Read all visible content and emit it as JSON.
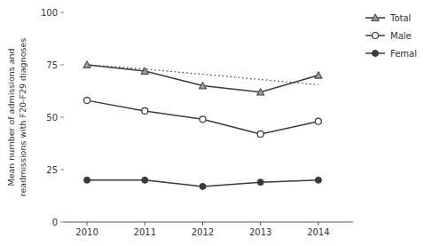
{
  "chart_data": {
    "type": "line",
    "y_label": "Mean number of admissions and\nreadmissions with F20-F29 diagnoses",
    "x": [
      2010,
      2011,
      2012,
      2013,
      2014
    ],
    "series": [
      {
        "name": "Total",
        "color": "#3a3a3a",
        "marker": "triangle",
        "line_style": "solid",
        "values": [
          75,
          72,
          65,
          62,
          70
        ]
      },
      {
        "color": "#3a3a3a",
        "line_style": "dotted",
        "values": [
          75.0,
          73.0,
          70.5,
          68.0,
          65.5
        ]
      },
      {
        "name": "Male",
        "color": "#3a3a3a",
        "marker": "circle-open",
        "line_style": "solid",
        "values": [
          58,
          53,
          49,
          42,
          48
        ]
      },
      {
        "name": "Femal",
        "color": "#3a3a3a",
        "marker": "circle",
        "line_style": "solid",
        "values": [
          20,
          20,
          17,
          19,
          20
        ]
      }
    ],
    "xlim": [
      2009.6,
      2014.6
    ],
    "ylim": [
      0,
      100
    ],
    "xticks": [
      2010,
      2011,
      2012,
      2013,
      2014
    ],
    "yticks": [
      0,
      25,
      50,
      75,
      100
    ],
    "grid": false,
    "legend": "right"
  }
}
